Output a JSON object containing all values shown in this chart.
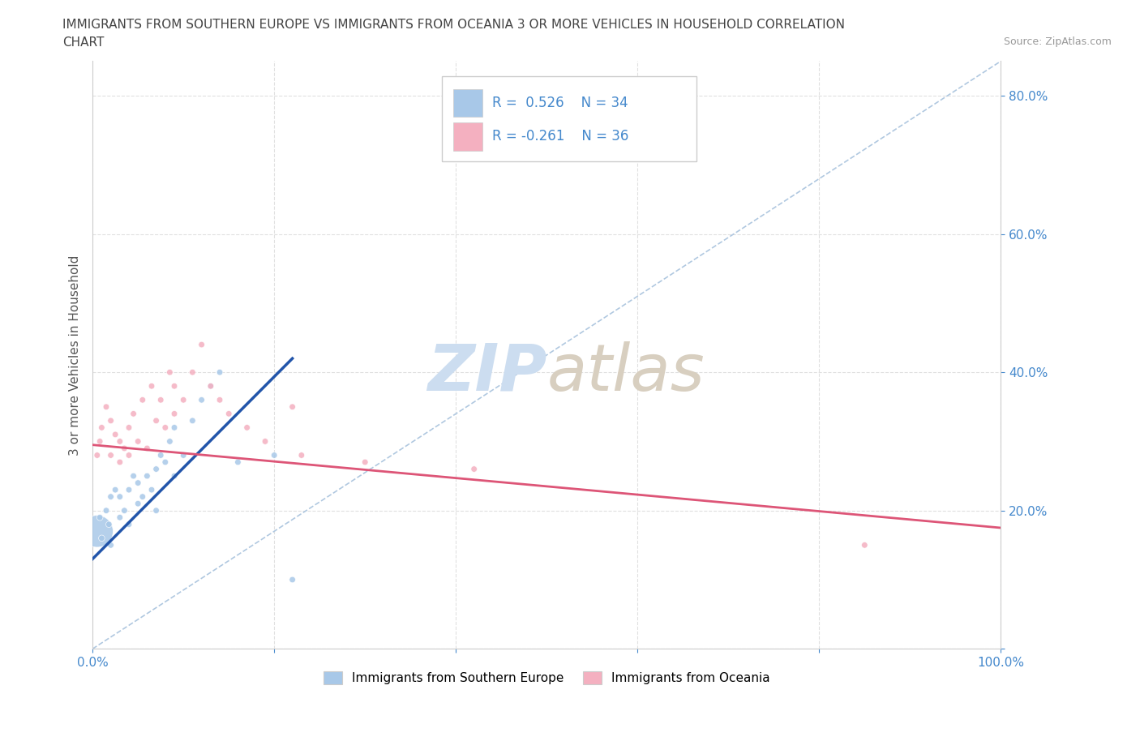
{
  "title_line1": "IMMIGRANTS FROM SOUTHERN EUROPE VS IMMIGRANTS FROM OCEANIA 3 OR MORE VEHICLES IN HOUSEHOLD CORRELATION",
  "title_line2": "CHART",
  "source": "Source: ZipAtlas.com",
  "ylabel": "3 or more Vehicles in Household",
  "xlim": [
    0.0,
    1.0
  ],
  "ylim": [
    0.0,
    0.85
  ],
  "blue_R": 0.526,
  "blue_N": 34,
  "pink_R": -0.261,
  "pink_N": 36,
  "legend_label1": "Immigrants from Southern Europe",
  "legend_label2": "Immigrants from Oceania",
  "blue_color": "#a8c8e8",
  "pink_color": "#f4b0c0",
  "blue_line_color": "#2255aa",
  "pink_line_color": "#dd5577",
  "diag_color": "#b0c8e0",
  "watermark_zip_color": "#ccddf0",
  "watermark_atlas_color": "#d8cfc0",
  "title_color": "#444444",
  "tick_color": "#4488cc",
  "grid_color": "#e0e0e0",
  "blue_scatter_x": [
    0.005,
    0.008,
    0.01,
    0.015,
    0.018,
    0.02,
    0.02,
    0.025,
    0.03,
    0.03,
    0.035,
    0.04,
    0.04,
    0.045,
    0.05,
    0.05,
    0.055,
    0.06,
    0.065,
    0.07,
    0.07,
    0.075,
    0.08,
    0.085,
    0.09,
    0.09,
    0.1,
    0.11,
    0.12,
    0.13,
    0.14,
    0.16,
    0.2,
    0.22
  ],
  "blue_scatter_y": [
    0.17,
    0.19,
    0.16,
    0.2,
    0.18,
    0.22,
    0.15,
    0.23,
    0.19,
    0.22,
    0.2,
    0.23,
    0.18,
    0.25,
    0.21,
    0.24,
    0.22,
    0.25,
    0.23,
    0.26,
    0.2,
    0.28,
    0.27,
    0.3,
    0.25,
    0.32,
    0.28,
    0.33,
    0.36,
    0.38,
    0.4,
    0.27,
    0.28,
    0.1
  ],
  "blue_scatter_size": [
    800,
    30,
    30,
    30,
    30,
    30,
    30,
    30,
    30,
    30,
    30,
    30,
    30,
    30,
    30,
    30,
    30,
    30,
    30,
    30,
    30,
    30,
    30,
    30,
    30,
    30,
    30,
    30,
    30,
    30,
    30,
    30,
    30,
    30
  ],
  "pink_scatter_x": [
    0.005,
    0.008,
    0.01,
    0.015,
    0.02,
    0.02,
    0.025,
    0.03,
    0.03,
    0.035,
    0.04,
    0.04,
    0.045,
    0.05,
    0.055,
    0.06,
    0.065,
    0.07,
    0.075,
    0.08,
    0.085,
    0.09,
    0.09,
    0.1,
    0.11,
    0.12,
    0.13,
    0.14,
    0.15,
    0.17,
    0.19,
    0.22,
    0.23,
    0.3,
    0.42,
    0.85
  ],
  "pink_scatter_y": [
    0.28,
    0.3,
    0.32,
    0.35,
    0.28,
    0.33,
    0.31,
    0.27,
    0.3,
    0.29,
    0.32,
    0.28,
    0.34,
    0.3,
    0.36,
    0.29,
    0.38,
    0.33,
    0.36,
    0.32,
    0.4,
    0.34,
    0.38,
    0.36,
    0.4,
    0.44,
    0.38,
    0.36,
    0.34,
    0.32,
    0.3,
    0.35,
    0.28,
    0.27,
    0.26,
    0.15
  ],
  "pink_scatter_size": [
    30,
    30,
    30,
    30,
    30,
    30,
    30,
    30,
    30,
    30,
    30,
    30,
    30,
    30,
    30,
    30,
    30,
    30,
    30,
    30,
    30,
    30,
    30,
    30,
    30,
    30,
    30,
    30,
    30,
    30,
    30,
    30,
    30,
    30,
    30,
    30
  ],
  "blue_line_x0": 0.0,
  "blue_line_y0": 0.13,
  "blue_line_x1": 0.22,
  "blue_line_y1": 0.42,
  "pink_line_x0": 0.0,
  "pink_line_y0": 0.295,
  "pink_line_x1": 1.0,
  "pink_line_y1": 0.175
}
